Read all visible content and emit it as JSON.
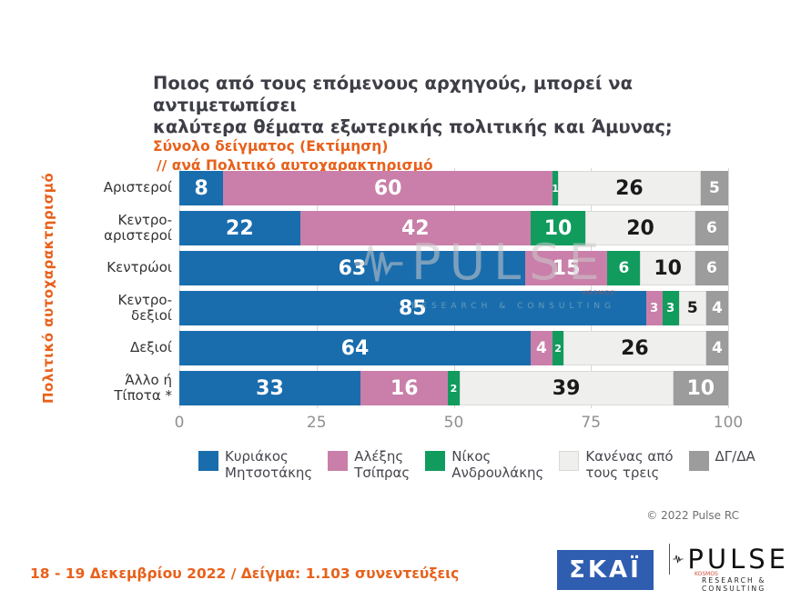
{
  "title": {
    "line1": "Ποιος από τους επόμενους αρχηγούς, μπορεί να αντιμετωπίσει",
    "line2": "καλύτερα θέματα εξωτερικής πολιτικής και Άμυνας;",
    "sub1": "Σύνολο δείγματος  (Εκτίμηση)",
    "sub2": "// ανά Πολιτικό αυτοχαρακτηρισμό"
  },
  "axis": {
    "y_label": "Πολιτικό αυτοχαρακτηρισμό"
  },
  "chart_data": {
    "type": "bar",
    "orientation": "horizontal",
    "stacked": true,
    "title": "Ποιος από τους επόμενους αρχηγούς, μπορεί να αντιμετωπίσει καλύτερα θέματα εξωτερικής πολιτικής και Άμυνας;",
    "categories": [
      "Αριστεροί",
      "Κεντρο-αριστεροί",
      "Κεντρώοι",
      "Κεντρο-δεξιοί",
      "Δεξιοί",
      "Άλλο ή Τίποτα *"
    ],
    "category_labels": [
      "Αριστεροί",
      "Κεντρο-\nαριστεροί",
      "Κεντρώοι",
      "Κεντρο-\nδεξιοί",
      "Δεξιοί",
      "Άλλο ή\nΤίποτα *"
    ],
    "series": [
      {
        "name": "Κυριάκος Μητσοτάκης",
        "legend_label": "Κυριάκος\nΜητσοτάκης",
        "color": "#1a6dad",
        "label_color": "#ffffff",
        "values": [
          8,
          22,
          63,
          85,
          64,
          33
        ]
      },
      {
        "name": "Αλέξης Τσίπρας",
        "legend_label": "Αλέξης\nΤσίπρας",
        "color": "#c97fa9",
        "label_color": "#ffffff",
        "values": [
          60,
          42,
          15,
          3,
          4,
          16
        ]
      },
      {
        "name": "Νίκος Ανδρουλάκης",
        "legend_label": "Νίκος\nΑνδρουλάκης",
        "color": "#119c5e",
        "label_color": "#ffffff",
        "values": [
          1,
          10,
          6,
          3,
          2,
          2
        ]
      },
      {
        "name": "Κανένας από τους τρεις",
        "legend_label": "Κανένας από\nτους τρεις",
        "color": "#efefee",
        "border": "#d9d9d9",
        "label_color": "#1a1a1a",
        "values": [
          26,
          20,
          10,
          5,
          26,
          39
        ]
      },
      {
        "name": "ΔΓ/ΔΑ",
        "legend_label": "ΔΓ/ΔΑ",
        "color": "#9c9c9c",
        "label_color": "#ffffff",
        "values": [
          5,
          6,
          6,
          4,
          4,
          10
        ]
      }
    ],
    "xlim": [
      0,
      100
    ],
    "x_ticks": [
      0,
      25,
      50,
      75,
      100
    ],
    "grid": true,
    "legend_position": "bottom"
  },
  "meta": {
    "copyright": "© 2022 Pulse RC"
  },
  "footer": {
    "note": "18 - 19  Δεκεμβρίου  2022  /  Δείγμα:  1.103 συνεντεύξεις"
  },
  "logos": {
    "skai": "ΣΚΑΪ",
    "pulse": {
      "name": "PULSE",
      "tagline": "RESEARCH & CONSULTING",
      "small": "KOSMOS"
    }
  },
  "watermark": {
    "name": "PULSE",
    "tagline": "RESEARCH & CONSULTING",
    "small": "KOSMOS"
  }
}
